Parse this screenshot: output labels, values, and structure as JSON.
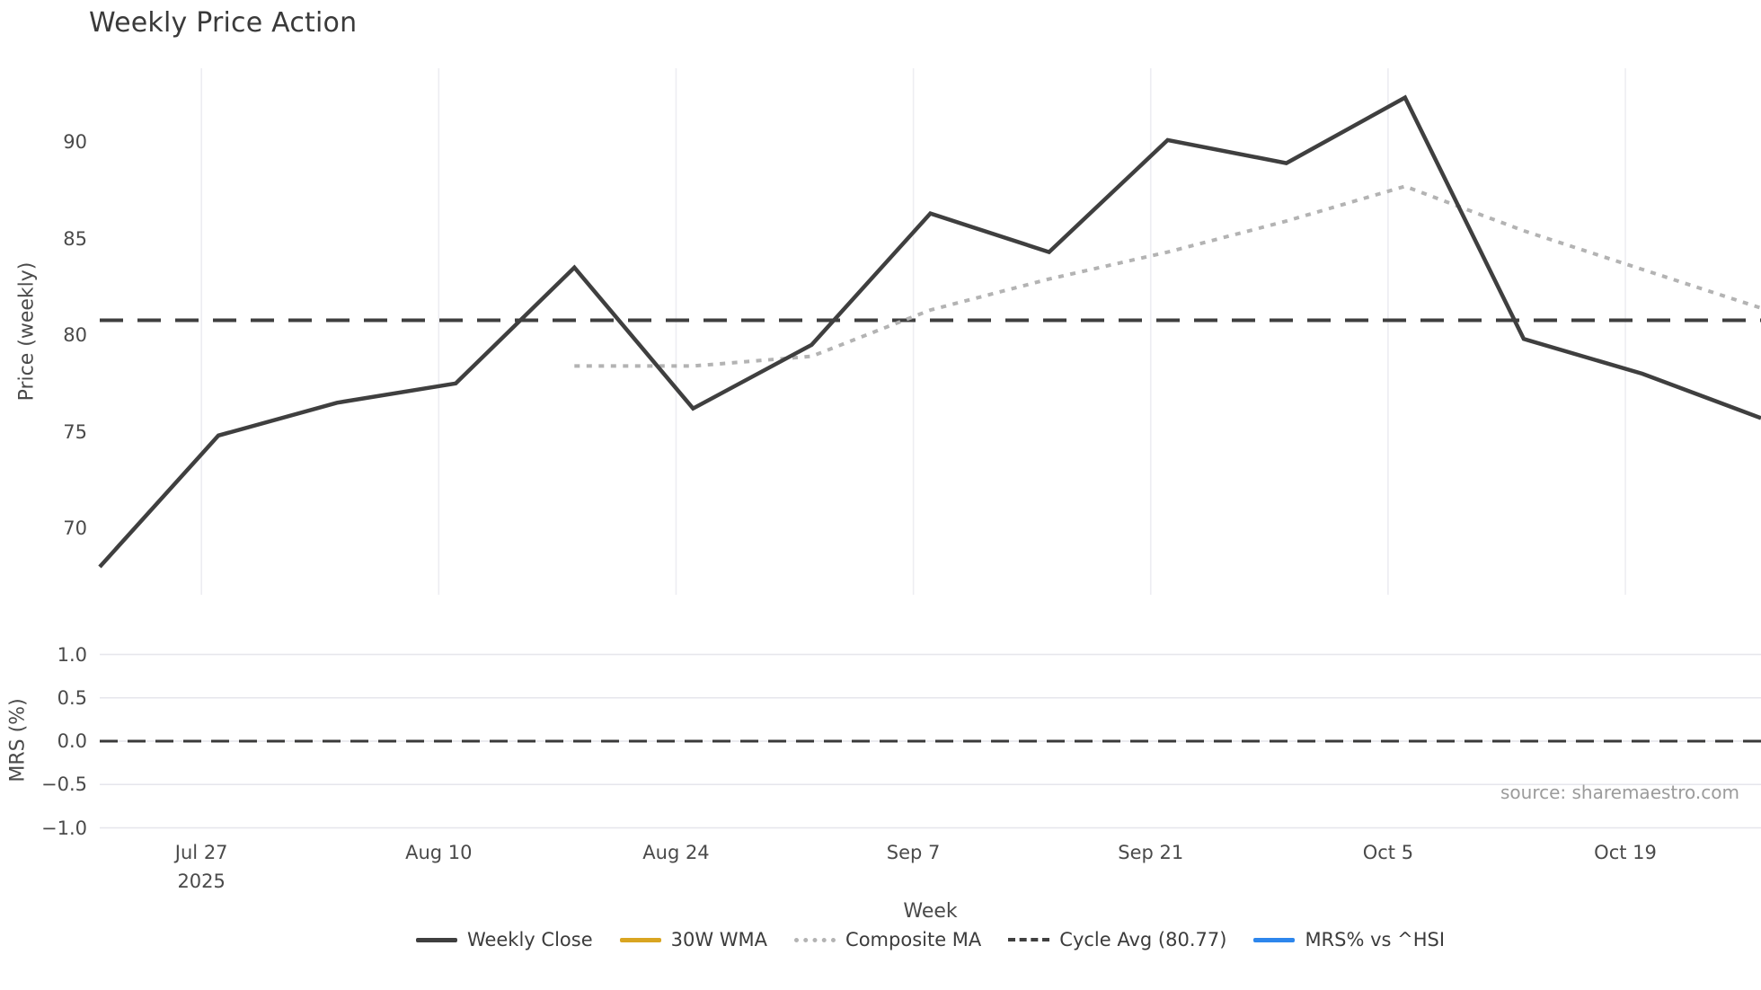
{
  "ui": {
    "title": "Weekly Price Action",
    "xlabel": "Week",
    "ylabel_price": "Price (weekly)",
    "ylabel_mrs": "MRS (%)",
    "source": "source: sharemaestro.com",
    "legend": [
      {
        "label": "Weekly Close",
        "color": "#3f3f3f",
        "style": "solid"
      },
      {
        "label": "30W WMA",
        "color": "#d9a521",
        "style": "solid"
      },
      {
        "label": "Composite MA",
        "color": "#b3b3b3",
        "style": "dotted"
      },
      {
        "label": "Cycle Avg (80.77)",
        "color": "#3f3f3f",
        "style": "dashed"
      },
      {
        "label": "MRS% vs ^HSI",
        "color": "#2d86ec",
        "style": "solid"
      }
    ]
  },
  "chart_data": {
    "type": "line",
    "title": "Weekly Price Action",
    "xlabel": "Week",
    "ylabel_top": "Price (weekly)",
    "ylabel_bottom": "MRS (%)",
    "weeks": [
      "Jul 21",
      "Jul 28",
      "Aug 4",
      "Aug 11",
      "Aug 18",
      "Aug 25",
      "Sep 1",
      "Sep 8",
      "Sep 15",
      "Sep 22",
      "Sep 29",
      "Oct 6",
      "Oct 13",
      "Oct 20",
      "Oct 27"
    ],
    "year": "2025",
    "series": [
      {
        "name": "Weekly Close",
        "style": "solid",
        "color": "#3f3f3f",
        "values": [
          68.0,
          74.8,
          76.5,
          77.5,
          83.5,
          76.2,
          79.5,
          86.3,
          84.3,
          90.1,
          88.9,
          92.3,
          79.8,
          78.0,
          75.7
        ]
      },
      {
        "name": "30W WMA",
        "style": "solid",
        "color": "#d9a521",
        "values": [],
        "note": "legend entry only; no visible line in plot"
      },
      {
        "name": "Composite MA",
        "style": "dotted",
        "color": "#b3b3b3",
        "start_index": 4,
        "values": [
          78.4,
          78.4,
          78.9,
          81.3,
          82.9,
          84.3,
          85.9,
          87.7,
          85.4,
          83.4,
          81.4
        ]
      },
      {
        "name": "Cycle Avg (80.77)",
        "style": "dashed",
        "color": "#3f3f3f",
        "constant": 80.77
      },
      {
        "name": "MRS% vs ^HSI",
        "style": "solid",
        "color": "#2d86ec",
        "panel": "mrs",
        "values": [],
        "note": "legend entry only; no visible line in plot"
      }
    ],
    "price_yticks": [
      {
        "label": "90",
        "value": 90
      },
      {
        "label": "85",
        "value": 85
      },
      {
        "label": "80",
        "value": 80
      },
      {
        "label": "75",
        "value": 75
      },
      {
        "label": "70",
        "value": 70
      }
    ],
    "price_ylim": [
      66.6,
      93.8
    ],
    "x_ticks": [
      {
        "label": "Jul 27",
        "sub": "2025",
        "week_offset": 0.857
      },
      {
        "label": "Aug 10",
        "week_offset": 2.857
      },
      {
        "label": "Aug 24",
        "week_offset": 4.857
      },
      {
        "label": "Sep 7",
        "week_offset": 6.857
      },
      {
        "label": "Sep 21",
        "week_offset": 8.857
      },
      {
        "label": "Oct 5",
        "week_offset": 10.857
      },
      {
        "label": "Oct 19",
        "week_offset": 12.857
      }
    ],
    "mrs_yticks": [
      {
        "label": "1.0",
        "value": 1.0
      },
      {
        "label": "0.5",
        "value": 0.5
      },
      {
        "label": "0.0",
        "value": 0.0
      },
      {
        "label": "−0.5",
        "value": -0.5
      },
      {
        "label": "−1.0",
        "value": -1.0
      }
    ],
    "mrs_ylim": [
      -1.1,
      1.1
    ],
    "mrs_reference_line": 0.0,
    "grid": "vertical date gridlines on price panel; horizontal gridlines on MRS panel",
    "legend_position": "bottom center"
  }
}
